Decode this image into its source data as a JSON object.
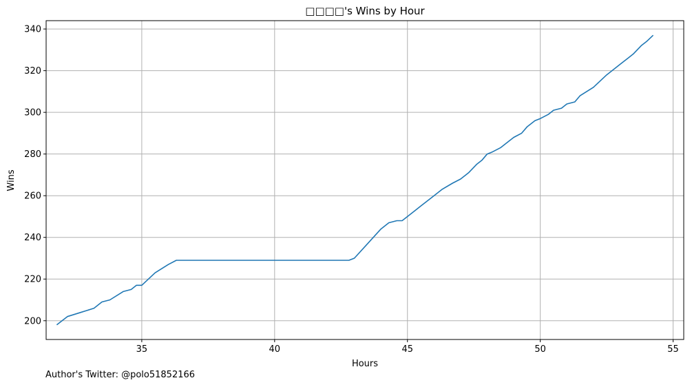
{
  "chart_data": {
    "type": "line",
    "title": "□□□□'s Wins by Hour",
    "xlabel": "Hours",
    "ylabel": "Wins",
    "xlim": [
      31.4,
      55.4
    ],
    "ylim": [
      191,
      344
    ],
    "xticks": [
      35,
      40,
      45,
      50,
      55
    ],
    "yticks": [
      200,
      220,
      240,
      260,
      280,
      300,
      320,
      340
    ],
    "grid": true,
    "line_color": "#1f77b4",
    "series": [
      {
        "x": [
          31.8,
          32.2,
          32.7,
          33.2,
          33.5,
          33.8,
          34.3,
          34.6,
          34.8,
          35.0,
          35.5,
          36.0,
          36.3,
          38.0,
          40.0,
          42.0,
          42.8,
          43.0,
          43.5,
          44.0,
          44.3,
          44.6,
          44.8,
          45.0,
          45.3,
          45.5,
          45.8,
          46.0,
          46.3,
          46.7,
          47.0,
          47.3,
          47.6,
          47.8,
          48.0,
          48.2,
          48.5,
          48.8,
          49.0,
          49.3,
          49.5,
          49.8,
          50.0,
          50.3,
          50.5,
          50.8,
          51.0,
          51.3,
          51.5,
          52.0,
          52.5,
          52.8,
          53.0,
          53.3,
          53.5,
          53.8,
          54.0,
          54.25
        ],
        "y": [
          198,
          202,
          204,
          206,
          209,
          210,
          214,
          215,
          217,
          217,
          223,
          227,
          229,
          229,
          229,
          229,
          229,
          230,
          237,
          244,
          247,
          248,
          248,
          250,
          253,
          255,
          258,
          260,
          263,
          266,
          268,
          271,
          275,
          277,
          280,
          281,
          283,
          286,
          288,
          290,
          293,
          296,
          297,
          299,
          301,
          302,
          304,
          305,
          308,
          312,
          318,
          321,
          323,
          326,
          328,
          332,
          334,
          337
        ]
      }
    ]
  },
  "footnote": "Author's Twitter: @polo51852166"
}
